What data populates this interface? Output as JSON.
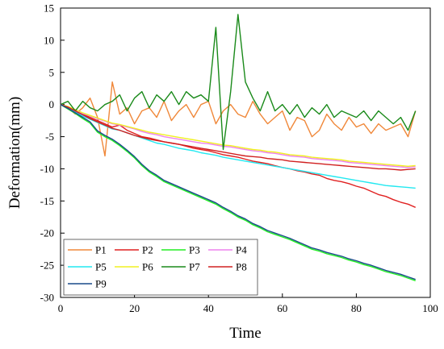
{
  "chart_data": {
    "type": "line",
    "xlabel": "Time",
    "ylabel": "Deformation(mm)",
    "xlim": [
      0,
      100
    ],
    "ylim": [
      -30,
      15
    ],
    "xticks": [
      0,
      20,
      40,
      60,
      80,
      100
    ],
    "yticks": [
      15,
      10,
      5,
      0,
      -5,
      -10,
      -15,
      -20,
      -25,
      -30
    ],
    "grid": false,
    "legend_position": "bottom-left",
    "x": [
      0,
      2,
      4,
      6,
      8,
      10,
      12,
      14,
      16,
      18,
      20,
      22,
      24,
      26,
      28,
      30,
      32,
      34,
      36,
      38,
      40,
      42,
      44,
      46,
      48,
      50,
      52,
      54,
      56,
      58,
      60,
      62,
      64,
      66,
      68,
      70,
      72,
      74,
      76,
      78,
      80,
      82,
      84,
      86,
      88,
      90,
      92,
      94,
      96
    ],
    "series": [
      {
        "name": "P1",
        "color": "#f0883a",
        "values": [
          0,
          -0.5,
          -1.5,
          -0.5,
          1,
          -2,
          -8,
          3.5,
          -1.5,
          -0.5,
          -3,
          -1,
          -0.5,
          -2,
          0.5,
          -2.5,
          -1,
          0,
          -2,
          0,
          0.5,
          -3,
          -1,
          0,
          -1.5,
          -2,
          0.5,
          -1.5,
          -3,
          -2,
          -1,
          -4,
          -2,
          -2.5,
          -5,
          -4,
          -1.5,
          -3,
          -4,
          -2,
          -3.5,
          -3,
          -4.5,
          -3,
          -4,
          -3.5,
          -3,
          -5,
          -1
        ]
      },
      {
        "name": "P2",
        "color": "#e02020",
        "values": [
          0,
          -0.5,
          -1.2,
          -1.5,
          -2,
          -2.5,
          -3,
          -3.5,
          -3.2,
          -4,
          -4.5,
          -5,
          -5.2,
          -5.5,
          -5.8,
          -6,
          -6.2,
          -6.5,
          -6.8,
          -7,
          -7.2,
          -7.5,
          -7.8,
          -8,
          -8.2,
          -8.5,
          -8.8,
          -9,
          -9.2,
          -9.5,
          -9.8,
          -10,
          -10.3,
          -10.5,
          -10.8,
          -11,
          -11.5,
          -11.8,
          -12,
          -12.3,
          -12.7,
          -13,
          -13.5,
          -14,
          -14.3,
          -14.8,
          -15.2,
          -15.5,
          -16
        ]
      },
      {
        "name": "P3",
        "color": "#22ee22",
        "values": [
          0,
          -0.7,
          -1.4,
          -2.2,
          -2.9,
          -4.3,
          -5,
          -5.6,
          -6.4,
          -7.3,
          -8.3,
          -9.5,
          -10.5,
          -11.2,
          -12,
          -12.5,
          -13,
          -13.5,
          -14,
          -14.5,
          -15,
          -15.5,
          -16.2,
          -16.8,
          -17.5,
          -18,
          -18.7,
          -19.2,
          -19.8,
          -20.2,
          -20.6,
          -21,
          -21.5,
          -22,
          -22.5,
          -22.8,
          -23.2,
          -23.5,
          -23.8,
          -24.2,
          -24.5,
          -24.9,
          -25.2,
          -25.6,
          -26,
          -26.3,
          -26.6,
          -27,
          -27.4
        ]
      },
      {
        "name": "P4",
        "color": "#ee82ee",
        "values": [
          0,
          -0.4,
          -0.9,
          -1.4,
          -1.8,
          -2.2,
          -2.6,
          -3,
          -3.2,
          -3.5,
          -3.8,
          -4.2,
          -4.5,
          -4.7,
          -5,
          -5.2,
          -5.4,
          -5.6,
          -5.8,
          -6,
          -6.1,
          -6.3,
          -6.5,
          -6.6,
          -6.8,
          -7,
          -7.2,
          -7.3,
          -7.5,
          -7.6,
          -7.8,
          -8,
          -8.1,
          -8.2,
          -8.4,
          -8.5,
          -8.6,
          -8.7,
          -8.8,
          -9,
          -9.1,
          -9.2,
          -9.3,
          -9.4,
          -9.5,
          -9.6,
          -9.7,
          -9.8,
          -9.7
        ]
      },
      {
        "name": "P5",
        "color": "#22e8f0",
        "values": [
          0,
          -0.5,
          -1.2,
          -1.8,
          -2.3,
          -2.8,
          -3.3,
          -3.8,
          -4,
          -4.4,
          -4.8,
          -5.2,
          -5.6,
          -6,
          -6.2,
          -6.5,
          -6.8,
          -7,
          -7.2,
          -7.5,
          -7.7,
          -7.9,
          -8.2,
          -8.4,
          -8.6,
          -8.8,
          -9,
          -9.2,
          -9.4,
          -9.6,
          -9.8,
          -10,
          -10.2,
          -10.4,
          -10.6,
          -10.8,
          -11,
          -11.2,
          -11.4,
          -11.6,
          -11.8,
          -12,
          -12.2,
          -12.4,
          -12.6,
          -12.7,
          -12.8,
          -12.9,
          -13
        ]
      },
      {
        "name": "P6",
        "color": "#f0f020",
        "values": [
          0,
          -0.3,
          -0.8,
          -1.3,
          -1.7,
          -2.1,
          -2.5,
          -2.9,
          -3.1,
          -3.4,
          -3.7,
          -4,
          -4.3,
          -4.5,
          -4.7,
          -4.9,
          -5.1,
          -5.3,
          -5.5,
          -5.7,
          -5.9,
          -6.1,
          -6.3,
          -6.4,
          -6.6,
          -6.8,
          -7,
          -7.1,
          -7.3,
          -7.4,
          -7.6,
          -7.8,
          -7.9,
          -8,
          -8.2,
          -8.3,
          -8.4,
          -8.5,
          -8.6,
          -8.8,
          -8.9,
          -9,
          -9.1,
          -9.2,
          -9.3,
          -9.4,
          -9.5,
          -9.6,
          -9.5
        ]
      },
      {
        "name": "P7",
        "color": "#1a8a1a",
        "values": [
          0,
          0.5,
          -1,
          0.5,
          -0.5,
          -1,
          0,
          0.5,
          1.5,
          -1,
          1,
          2,
          -0.5,
          1.5,
          0.5,
          2,
          0,
          2,
          1,
          1.5,
          0.5,
          12,
          -7,
          2,
          14,
          3.5,
          1,
          -1,
          2,
          -1,
          0,
          -1.5,
          0,
          -2,
          -0.5,
          -1.5,
          0,
          -2,
          -1,
          -1.5,
          -2,
          -1,
          -2.5,
          -1,
          -2,
          -3,
          -2,
          -4,
          -1
        ]
      },
      {
        "name": "P8",
        "color": "#d02020",
        "values": [
          0,
          -0.4,
          -1,
          -1.6,
          -2.2,
          -2.7,
          -3.2,
          -3.7,
          -4,
          -4.4,
          -4.8,
          -5.1,
          -5.4,
          -5.6,
          -5.8,
          -6,
          -6.2,
          -6.4,
          -6.6,
          -6.8,
          -7,
          -7.2,
          -7.4,
          -7.6,
          -7.8,
          -8,
          -8.1,
          -8.2,
          -8.4,
          -8.5,
          -8.6,
          -8.8,
          -8.9,
          -9,
          -9.1,
          -9.2,
          -9.3,
          -9.4,
          -9.5,
          -9.6,
          -9.7,
          -9.8,
          -9.9,
          -10,
          -10,
          -10.1,
          -10.2,
          -10.1,
          -10
        ]
      },
      {
        "name": "P9",
        "color": "#1a4a8a",
        "values": [
          0,
          -0.6,
          -1.3,
          -2,
          -2.7,
          -4.1,
          -4.8,
          -5.4,
          -6.2,
          -7.1,
          -8.1,
          -9.3,
          -10.3,
          -11,
          -11.8,
          -12.3,
          -12.8,
          -13.3,
          -13.8,
          -14.3,
          -14.8,
          -15.3,
          -16,
          -16.6,
          -17.3,
          -17.8,
          -18.5,
          -19,
          -19.6,
          -20,
          -20.4,
          -20.8,
          -21.3,
          -21.8,
          -22.3,
          -22.6,
          -23,
          -23.3,
          -23.6,
          -24,
          -24.3,
          -24.7,
          -25,
          -25.4,
          -25.8,
          -26.1,
          -26.4,
          -26.8,
          -27.2
        ]
      }
    ]
  }
}
